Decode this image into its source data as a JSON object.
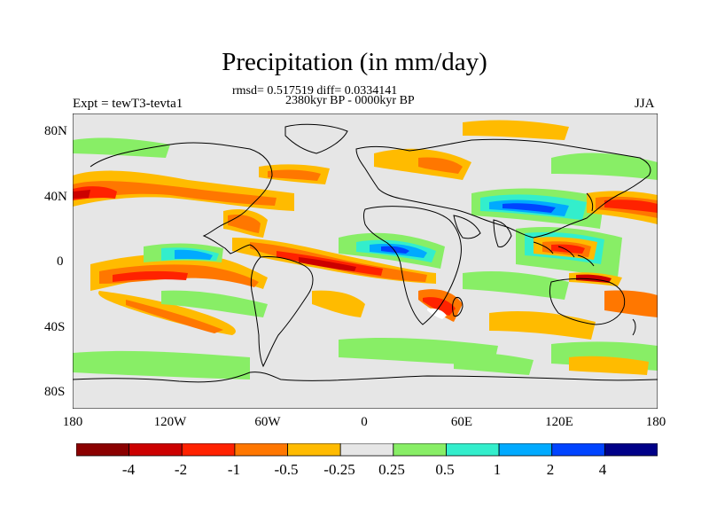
{
  "title": "Precipitation (in mm/day)",
  "stats": "rmsd= 0.517519 diff= 0.0334141",
  "period": "2380kyr BP - 0000kyr BP",
  "experiment": "Expt = tewT3-tevta1",
  "season": "JJA",
  "lat_ticks": [
    "80N",
    "40N",
    "0",
    "40S",
    "80S"
  ],
  "lon_ticks": [
    "180",
    "120W",
    "60W",
    "0",
    "60E",
    "120E",
    "180"
  ],
  "colorbar": {
    "labels": [
      "-4",
      "-2",
      "-1",
      "-0.5",
      "-0.25",
      "0.25",
      "0.5",
      "1",
      "2",
      "4"
    ],
    "colors": [
      "#8b0000",
      "#cc0000",
      "#ff2200",
      "#ff7700",
      "#ffbb00",
      "#e6e6e6",
      "#88ee66",
      "#33eecc",
      "#00aaff",
      "#0044ff",
      "#000088"
    ]
  },
  "colors": {
    "background": "#e6e6e6",
    "coast": "#000000"
  }
}
